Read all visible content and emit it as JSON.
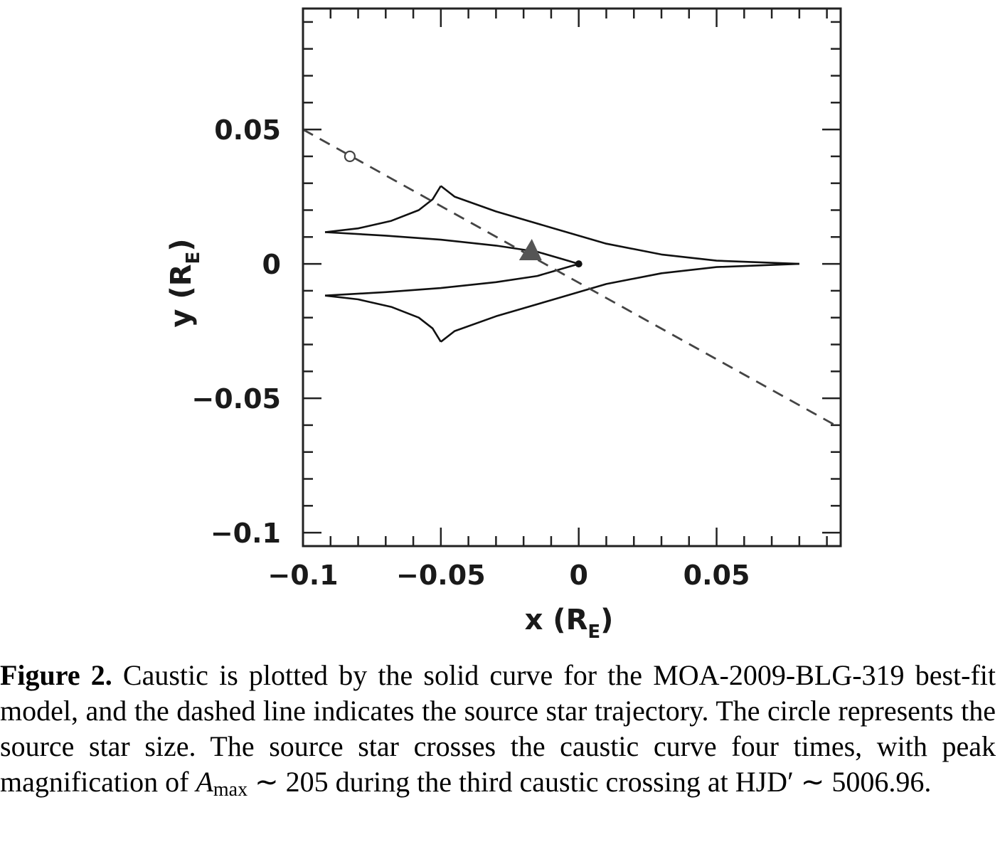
{
  "chart_data": {
    "type": "line",
    "xlabel": "x (R",
    "xlabel_sub": "E",
    "xlabel_close": ")",
    "ylabel": "y (R",
    "ylabel_sub": "E",
    "ylabel_close": ")",
    "xlim": [
      -0.1,
      0.095
    ],
    "ylim": [
      -0.105,
      0.095
    ],
    "x_ticks": [
      {
        "value": -0.1,
        "label": "−0.1"
      },
      {
        "value": -0.05,
        "label": "−0.05"
      },
      {
        "value": 0,
        "label": "0"
      },
      {
        "value": 0.05,
        "label": "0.05"
      }
    ],
    "y_ticks": [
      {
        "value": 0.05,
        "label": "0.05"
      },
      {
        "value": 0,
        "label": "0"
      },
      {
        "value": -0.05,
        "label": "−0.05"
      },
      {
        "value": -0.1,
        "label": "−0.1"
      }
    ],
    "minor_tick_step": 0.01,
    "grid": false,
    "series": [
      {
        "style": "solid",
        "description_role": "caustic",
        "segments": [
          [
            [
              0.08,
              0.0
            ],
            [
              0.05,
              0.0012
            ],
            [
              0.03,
              0.0035
            ],
            [
              0.01,
              0.0075
            ],
            [
              -0.01,
              0.0135
            ],
            [
              -0.03,
              0.0195
            ],
            [
              -0.045,
              0.025
            ],
            [
              -0.05,
              0.029
            ]
          ],
          [
            [
              -0.05,
              0.029
            ],
            [
              -0.053,
              0.024
            ],
            [
              -0.058,
              0.02
            ],
            [
              -0.068,
              0.016
            ],
            [
              -0.08,
              0.0132
            ],
            [
              -0.092,
              0.0118
            ]
          ],
          [
            [
              -0.092,
              0.0118
            ],
            [
              -0.07,
              0.0105
            ],
            [
              -0.05,
              0.009
            ],
            [
              -0.03,
              0.0068
            ],
            [
              -0.015,
              0.0045
            ],
            [
              -0.006,
              0.0018
            ],
            [
              0.0,
              0.0
            ]
          ],
          [
            [
              0.0,
              0.0
            ],
            [
              -0.006,
              -0.0018
            ],
            [
              -0.015,
              -0.0045
            ],
            [
              -0.03,
              -0.0068
            ],
            [
              -0.05,
              -0.009
            ],
            [
              -0.07,
              -0.0105
            ],
            [
              -0.092,
              -0.0118
            ]
          ],
          [
            [
              -0.092,
              -0.0118
            ],
            [
              -0.08,
              -0.0132
            ],
            [
              -0.068,
              -0.016
            ],
            [
              -0.058,
              -0.02
            ],
            [
              -0.053,
              -0.024
            ],
            [
              -0.05,
              -0.029
            ]
          ],
          [
            [
              -0.05,
              -0.029
            ],
            [
              -0.045,
              -0.025
            ],
            [
              -0.03,
              -0.0195
            ],
            [
              -0.01,
              -0.0135
            ],
            [
              0.01,
              -0.0075
            ],
            [
              0.03,
              -0.0035
            ],
            [
              0.05,
              -0.0012
            ],
            [
              0.08,
              0.0
            ]
          ]
        ]
      },
      {
        "style": "dashed",
        "description_role": "source trajectory",
        "points": [
          [
            -0.1,
            0.05
          ],
          [
            0.093,
            -0.06
          ]
        ]
      }
    ],
    "markers": [
      {
        "shape": "open-circle",
        "x": -0.083,
        "y": 0.04
      },
      {
        "shape": "filled-triangle",
        "x": -0.017,
        "y": 0.004
      },
      {
        "shape": "filled-dot",
        "x": 0.0,
        "y": 0.0
      }
    ]
  },
  "caption": {
    "label": "Figure 2.",
    "text_1": " Caustic is plotted by the solid curve for the MOA-2009-BLG-319 best-fit model, and the dashed line indicates the source star trajectory. The circle represents the source star size. The source star crosses the caustic curve four times, with peak magnification of ",
    "amax_italic": "A",
    "amax_sub": "max",
    "text_2": " ∼ 205 during the third caustic crossing at HJD′ ∼ 5006.96."
  }
}
